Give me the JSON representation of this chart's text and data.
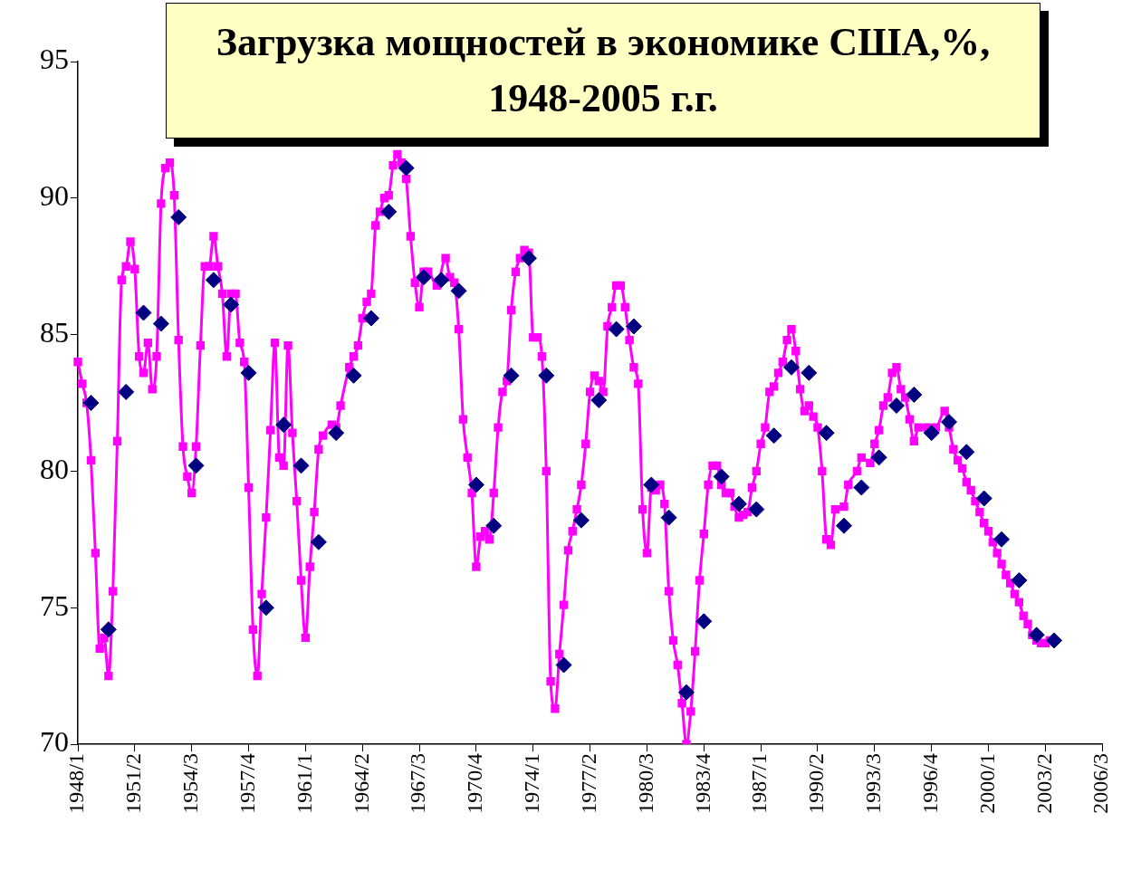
{
  "chart_data": {
    "type": "line",
    "title": "Загрузка мощностей в экономике США,%, 1948-2005 г.г.",
    "categories": [
      "1948/1",
      null,
      null,
      null,
      null,
      null,
      null,
      null,
      null,
      null,
      null,
      null,
      null,
      "1951/2",
      null,
      null,
      null,
      null,
      null,
      null,
      null,
      null,
      null,
      null,
      null,
      null,
      "1954/3",
      null,
      null,
      null,
      null,
      null,
      null,
      null,
      null,
      null,
      null,
      null,
      null,
      "1957/4",
      null,
      null,
      null,
      null,
      null,
      null,
      null,
      null,
      null,
      null,
      null,
      null,
      "1961/1",
      null,
      null,
      null,
      null,
      null,
      null,
      null,
      null,
      null,
      null,
      null,
      null,
      "1964/2",
      null,
      null,
      null,
      null,
      null,
      null,
      null,
      null,
      null,
      null,
      null,
      null,
      "1967/3",
      null,
      null,
      null,
      null,
      null,
      null,
      null,
      null,
      null,
      null,
      null,
      null,
      "1970/4",
      null,
      null,
      null,
      null,
      null,
      null,
      null,
      null,
      null,
      null,
      null,
      null,
      "1974/1",
      null,
      null,
      null,
      null,
      null,
      null,
      null,
      null,
      null,
      null,
      null,
      null,
      "1977/2",
      null,
      null,
      null,
      null,
      null,
      null,
      null,
      null,
      null,
      null,
      null,
      null,
      "1980/3",
      null,
      null,
      null,
      null,
      null,
      null,
      null,
      null,
      null,
      null,
      null,
      null,
      "1983/4",
      null,
      null,
      null,
      null,
      null,
      null,
      null,
      null,
      null,
      null,
      null,
      null,
      "1987/1",
      null,
      null,
      null,
      null,
      null,
      null,
      null,
      null,
      null,
      null,
      null,
      null,
      "1990/2",
      null,
      null,
      null,
      null,
      null,
      null,
      null,
      null,
      null,
      null,
      null,
      null,
      "1993/3",
      null,
      null,
      null,
      null,
      null,
      null,
      null,
      null,
      null,
      null,
      null,
      null,
      "1996/4",
      null,
      null,
      null,
      null,
      null,
      null,
      null,
      null,
      null,
      null,
      null,
      null,
      "2000/1",
      null,
      null,
      null,
      null,
      null,
      null,
      null,
      null,
      null,
      null,
      null,
      null,
      "2003/2",
      null,
      null,
      null,
      null,
      null,
      null,
      null,
      null,
      null,
      null,
      null,
      null,
      "2006/3"
    ],
    "series": [
      {
        "type": "line",
        "color": "#ff00ff",
        "marker": "square",
        "values": [
          84.0,
          83.2,
          82.5,
          80.4,
          77.0,
          73.5,
          73.9,
          72.5,
          75.6,
          81.1,
          87.0,
          87.5,
          88.4,
          87.4,
          84.2,
          83.6,
          84.7,
          83.0,
          84.2,
          89.8,
          91.1,
          91.3,
          90.1,
          84.8,
          80.9,
          79.8,
          79.2,
          80.9,
          84.6,
          87.5,
          87.5,
          88.6,
          87.5,
          86.5,
          84.2,
          86.5,
          86.5,
          84.7,
          84.0,
          79.4,
          74.2,
          72.5,
          75.5,
          78.3,
          81.5,
          84.7,
          80.5,
          80.2,
          84.6,
          81.4,
          78.9,
          76.0,
          73.9,
          76.5,
          78.5,
          80.8,
          81.3,
          null,
          81.7,
          81.6,
          82.4,
          null,
          83.8,
          84.2,
          84.6,
          85.6,
          86.2,
          86.5,
          89.0,
          89.5,
          90.0,
          90.1,
          91.2,
          91.6,
          91.3,
          90.7,
          88.6,
          86.9,
          86.0,
          87.3,
          87.3,
          null,
          86.8,
          null,
          87.8,
          87.1,
          86.9,
          85.2,
          81.9,
          80.5,
          79.2,
          76.5,
          77.6,
          77.8,
          77.5,
          79.2,
          81.6,
          82.9,
          83.3,
          85.9,
          87.3,
          87.8,
          88.1,
          88.0,
          84.9,
          84.9,
          84.2,
          80.0,
          72.3,
          71.3,
          73.3,
          75.1,
          77.1,
          77.8,
          78.6,
          79.5,
          81.0,
          82.9,
          83.5,
          83.3,
          82.9,
          85.3,
          86.0,
          86.8,
          86.8,
          86.0,
          84.8,
          83.8,
          83.2,
          78.6,
          77.0,
          79.4,
          79.3,
          79.5,
          78.8,
          75.6,
          73.8,
          72.9,
          71.5,
          70.0,
          71.2,
          73.4,
          76.0,
          77.7,
          79.5,
          80.2,
          80.2,
          79.5,
          79.2,
          79.2,
          78.7,
          78.3,
          78.4,
          78.5,
          79.4,
          80.0,
          81.0,
          81.6,
          82.9,
          83.1,
          83.6,
          84.0,
          84.8,
          85.2,
          84.4,
          83.0,
          82.2,
          82.4,
          82.0,
          81.6,
          80.0,
          77.5,
          77.3,
          78.6,
          null,
          78.7,
          79.5,
          null,
          80.0,
          80.5,
          null,
          80.3,
          81.0,
          81.5,
          82.4,
          82.7,
          83.6,
          83.8,
          83.0,
          82.7,
          81.9,
          81.1,
          81.6,
          null,
          81.6,
          null,
          81.6,
          null,
          82.2,
          81.6,
          80.8,
          80.4,
          80.1,
          79.6,
          79.3,
          78.9,
          78.5,
          78.1,
          77.8,
          77.4,
          77.0,
          76.6,
          76.2,
          75.9,
          75.5,
          75.2,
          74.7,
          74.4,
          74.0,
          73.8,
          73.7,
          73.7,
          73.8,
          null,
          null,
          null,
          null,
          null,
          null,
          null,
          null,
          null,
          null,
          null,
          null
        ]
      },
      {
        "type": "scatter",
        "color": "#000080",
        "marker": "diamond",
        "values": [
          null,
          null,
          null,
          82.5,
          null,
          null,
          null,
          74.2,
          null,
          null,
          null,
          82.9,
          null,
          null,
          null,
          85.8,
          null,
          null,
          null,
          85.4,
          null,
          null,
          null,
          89.3,
          null,
          null,
          null,
          80.2,
          null,
          null,
          null,
          87.0,
          null,
          null,
          null,
          86.1,
          null,
          null,
          null,
          83.6,
          null,
          null,
          null,
          75.0,
          null,
          null,
          null,
          81.7,
          null,
          null,
          null,
          80.2,
          null,
          null,
          null,
          77.4,
          null,
          null,
          null,
          81.4,
          null,
          null,
          null,
          83.5,
          null,
          null,
          null,
          85.6,
          null,
          null,
          null,
          89.5,
          null,
          null,
          null,
          91.1,
          null,
          null,
          null,
          87.1,
          null,
          null,
          null,
          87.0,
          null,
          null,
          null,
          86.6,
          null,
          null,
          null,
          79.5,
          null,
          null,
          null,
          78.0,
          null,
          null,
          null,
          83.5,
          null,
          null,
          null,
          87.8,
          null,
          null,
          null,
          83.5,
          null,
          null,
          null,
          72.9,
          null,
          null,
          null,
          78.2,
          null,
          null,
          null,
          82.6,
          null,
          null,
          null,
          85.2,
          null,
          null,
          null,
          85.3,
          null,
          null,
          null,
          79.5,
          null,
          null,
          null,
          78.3,
          null,
          null,
          null,
          71.9,
          null,
          null,
          null,
          74.5,
          null,
          null,
          null,
          79.8,
          null,
          null,
          null,
          78.8,
          null,
          null,
          null,
          78.6,
          null,
          null,
          null,
          81.3,
          null,
          null,
          null,
          83.8,
          null,
          null,
          null,
          83.6,
          null,
          null,
          null,
          81.4,
          null,
          null,
          null,
          78.0,
          null,
          null,
          null,
          79.4,
          null,
          null,
          null,
          80.5,
          null,
          null,
          null,
          82.4,
          null,
          null,
          null,
          82.8,
          null,
          null,
          null,
          81.4,
          null,
          null,
          null,
          81.8,
          null,
          null,
          null,
          80.7,
          null,
          null,
          null,
          79.0,
          null,
          null,
          null,
          77.5,
          null,
          null,
          null,
          76.0,
          null,
          null,
          null,
          74.0,
          null,
          null,
          null,
          73.8,
          null,
          null,
          null,
          null,
          null,
          null,
          null,
          null,
          null,
          null,
          null
        ]
      }
    ],
    "ylim": [
      70,
      95
    ],
    "yticks": [
      70,
      75,
      80,
      85,
      90,
      95
    ]
  }
}
